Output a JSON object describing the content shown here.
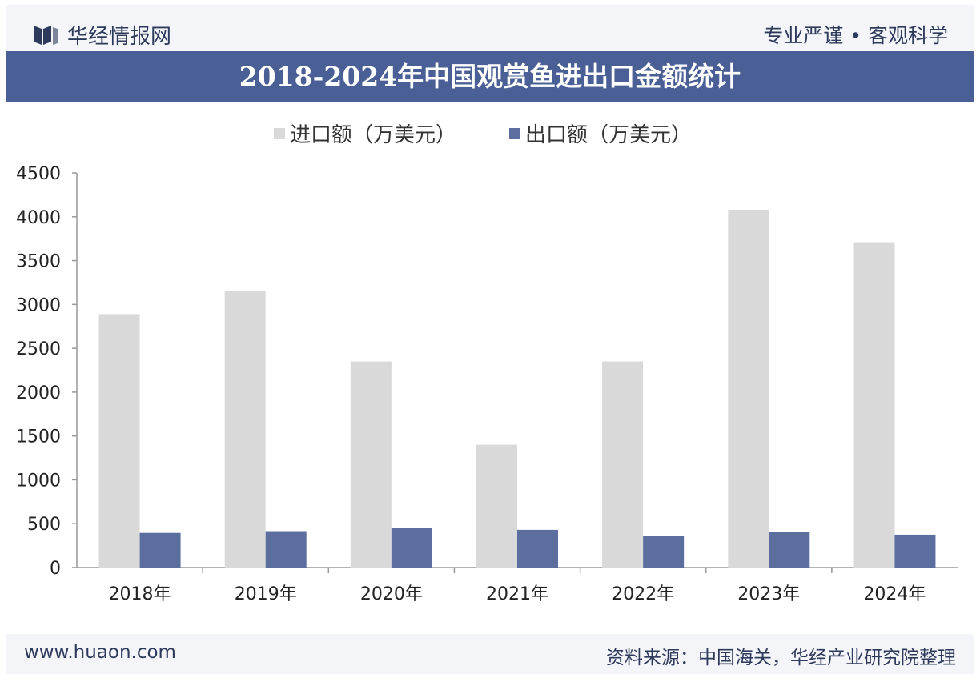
{
  "header": {
    "brand": "华经情报网",
    "slogan": "专业严谨 • 客观科学",
    "title": "2018-2024年中国观赏鱼进出口金额统计"
  },
  "footer": {
    "site": "www.huaon.com",
    "source": "资料来源：中国海关，华经产业研究院整理"
  },
  "colors": {
    "import": "#d9d9d9",
    "export": "#5b6e9e",
    "title_bg": "#4a5f95"
  },
  "chart_data": {
    "type": "bar",
    "title": "2018-2024年中国观赏鱼进出口金额统计",
    "categories": [
      "2018年",
      "2019年",
      "2020年",
      "2021年",
      "2022年",
      "2023年",
      "2024年"
    ],
    "series": [
      {
        "name": "进口额（万美元）",
        "values": [
          2890,
          3150,
          2350,
          1400,
          2350,
          4080,
          3710
        ]
      },
      {
        "name": "出口额（万美元）",
        "values": [
          395,
          415,
          450,
          430,
          360,
          410,
          375
        ]
      }
    ],
    "yticks": [
      "0",
      "500",
      "1000",
      "1500",
      "2000",
      "2500",
      "3000",
      "3500",
      "4000",
      "4500"
    ],
    "ylim": [
      0,
      4500
    ],
    "legend_position": "top",
    "grid": false
  }
}
